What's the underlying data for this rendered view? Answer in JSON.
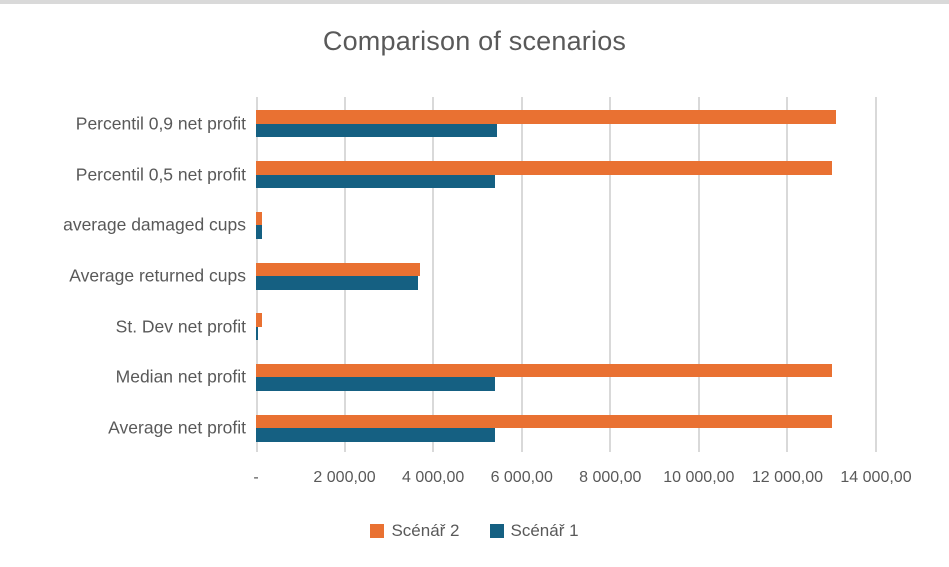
{
  "chart_data": {
    "type": "bar",
    "orientation": "horizontal",
    "title": "Comparison of scenarios",
    "categories_top_to_bottom": [
      "Percentil 0,9 net profit",
      "Percentil 0,5 net profit",
      "average damaged cups",
      "Average returned cups",
      "St. Dev net profit",
      "Median net profit",
      "Average net profit"
    ],
    "series": [
      {
        "name": "Scénář 2",
        "color": "#E97132",
        "values_top_to_bottom": [
          13100,
          13000,
          130,
          3700,
          130,
          13000,
          13000
        ]
      },
      {
        "name": "Scénář 1",
        "color": "#156082",
        "values_top_to_bottom": [
          5450,
          5400,
          135,
          3650,
          45,
          5400,
          5400
        ]
      }
    ],
    "xlim": [
      0,
      14000
    ],
    "x_tick_step": 2000,
    "x_tick_labels": [
      "-",
      "2 000,00",
      "4 000,00",
      "6 000,00",
      "8 000,00",
      "10 000,00",
      "12 000,00",
      "14 000,00"
    ],
    "grid": "vertical",
    "gridline_color": "#D9D9D9",
    "text_color": "#595959",
    "legend_position": "bottom",
    "legend_order": [
      "Scénář 2",
      "Scénář 1"
    ]
  }
}
